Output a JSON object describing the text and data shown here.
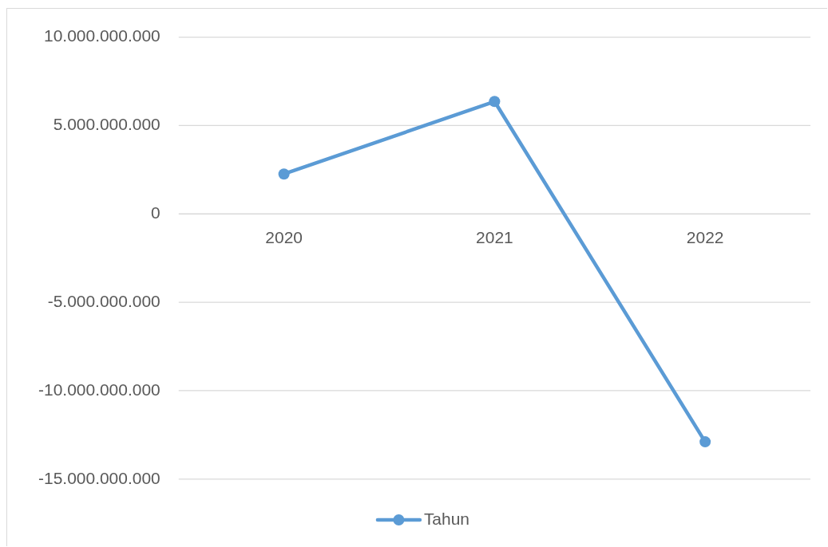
{
  "chart_data": {
    "type": "line",
    "categories": [
      "2020",
      "2021",
      "2022"
    ],
    "series": [
      {
        "name": "Tahun",
        "color": "#5b9bd5",
        "values": [
          2260000000,
          6360000000,
          -12880000000
        ]
      }
    ],
    "ylim": [
      -15000000000,
      10000000000
    ],
    "yticks": [
      {
        "value": -15000000000,
        "label": "-15.000.000.000"
      },
      {
        "value": -10000000000,
        "label": "-10.000.000.000"
      },
      {
        "value": -5000000000,
        "label": "-5.000.000.000"
      },
      0,
      {
        "value": 5000000000,
        "label": "5.000.000.000"
      },
      {
        "value": 10000000000,
        "label": "10.000.000.000"
      }
    ],
    "grid": "y",
    "legend": "bottom",
    "marker": "circle",
    "line_style": "solid"
  }
}
